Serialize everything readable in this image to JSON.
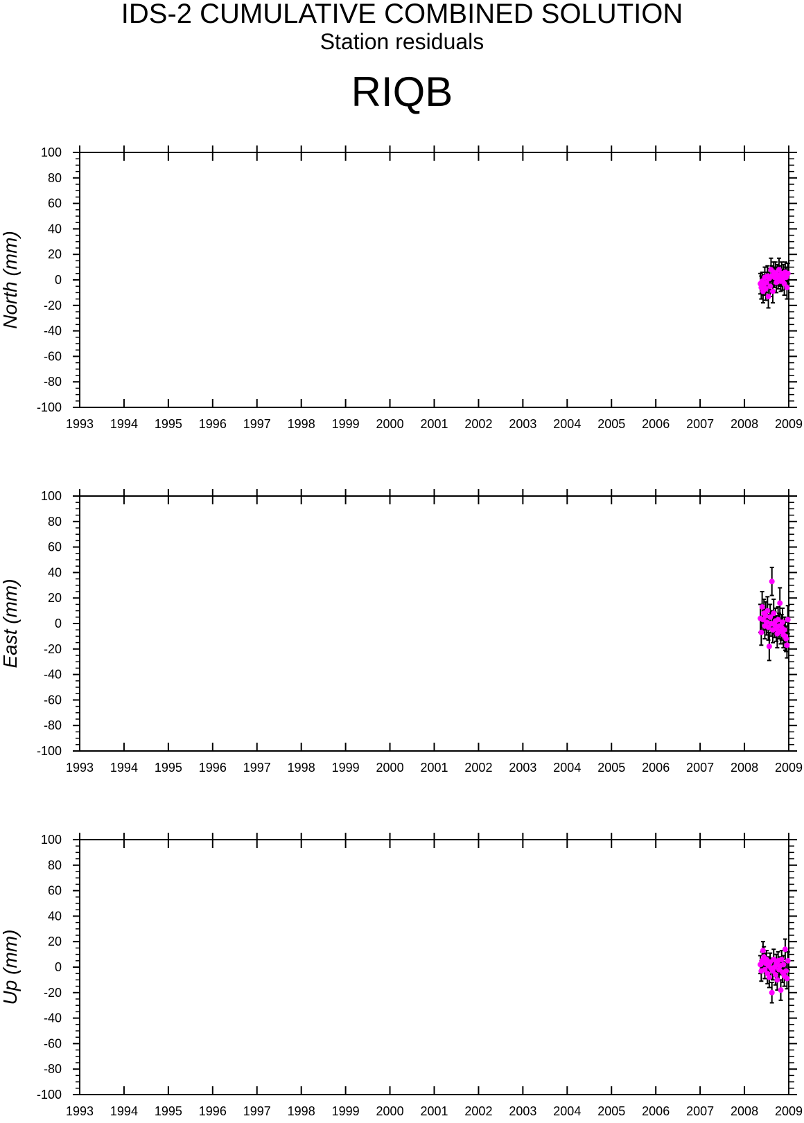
{
  "header": {
    "title": "IDS-2 CUMULATIVE COMBINED SOLUTION",
    "subtitle": "Station residuals",
    "station": "RIQB"
  },
  "colors": {
    "point": "#ff00ff",
    "error_bar": "#000000",
    "axis": "#000000"
  },
  "chart_data": [
    {
      "type": "scatter",
      "ylabel": "North (mm)",
      "xlim": [
        1993,
        2009
      ],
      "ylim": [
        -100,
        100
      ],
      "x_ticks": [
        "1993",
        "1994",
        "1995",
        "1996",
        "1997",
        "1998",
        "1999",
        "2000",
        "2001",
        "2002",
        "2003",
        "2004",
        "2005",
        "2006",
        "2007",
        "2008",
        "2009"
      ],
      "y_ticks": [
        "100",
        "80",
        "60",
        "40",
        "20",
        "0",
        "-20",
        "-40",
        "-60",
        "-80",
        "-100"
      ],
      "grid": false,
      "x": [
        2008.36,
        2008.38,
        2008.4,
        2008.42,
        2008.44,
        2008.46,
        2008.48,
        2008.5,
        2008.52,
        2008.54,
        2008.56,
        2008.58,
        2008.6,
        2008.62,
        2008.64,
        2008.66,
        2008.68,
        2008.7,
        2008.72,
        2008.74,
        2008.76,
        2008.78,
        2008.8,
        2008.82,
        2008.84,
        2008.86,
        2008.88,
        2008.9,
        2008.92,
        2008.94,
        2008.96,
        2008.98
      ],
      "y": [
        -3,
        -6,
        -1,
        -9,
        -4,
        2,
        -7,
        -2,
        3,
        -13,
        1,
        -5,
        8,
        3,
        -9,
        6,
        2,
        5,
        -2,
        4,
        1,
        8,
        3,
        -1,
        5,
        0,
        4,
        -3,
        6,
        2,
        -6,
        5
      ],
      "err": [
        8,
        9,
        7,
        9,
        8,
        8,
        9,
        8,
        8,
        9,
        8,
        8,
        9,
        8,
        9,
        8,
        8,
        9,
        8,
        8,
        8,
        9,
        8,
        8,
        9,
        8,
        8,
        9,
        8,
        8,
        9,
        8
      ]
    },
    {
      "type": "scatter",
      "ylabel": "East (mm)",
      "xlim": [
        1993,
        2009
      ],
      "ylim": [
        -100,
        100
      ],
      "x_ticks": [
        "1993",
        "1994",
        "1995",
        "1996",
        "1997",
        "1998",
        "1999",
        "2000",
        "2001",
        "2002",
        "2003",
        "2004",
        "2005",
        "2006",
        "2007",
        "2008",
        "2009"
      ],
      "y_ticks": [
        "100",
        "80",
        "60",
        "40",
        "20",
        "0",
        "-20",
        "-40",
        "-60",
        "-80",
        "-100"
      ],
      "grid": false,
      "x": [
        2008.36,
        2008.38,
        2008.4,
        2008.42,
        2008.44,
        2008.46,
        2008.48,
        2008.5,
        2008.52,
        2008.54,
        2008.56,
        2008.58,
        2008.6,
        2008.62,
        2008.64,
        2008.66,
        2008.68,
        2008.7,
        2008.72,
        2008.74,
        2008.76,
        2008.78,
        2008.8,
        2008.82,
        2008.84,
        2008.86,
        2008.88,
        2008.9,
        2008.92,
        2008.94,
        2008.96,
        2008.98
      ],
      "y": [
        4,
        -7,
        13,
        3,
        8,
        -2,
        6,
        1,
        10,
        -3,
        -18,
        5,
        0,
        33,
        -5,
        8,
        -1,
        2,
        -4,
        -8,
        3,
        -2,
        16,
        -6,
        -3,
        1,
        -9,
        -5,
        -10,
        -12,
        -17,
        3
      ],
      "err": [
        11,
        10,
        12,
        10,
        11,
        10,
        11,
        10,
        11,
        10,
        11,
        10,
        10,
        11,
        10,
        11,
        10,
        10,
        10,
        11,
        10,
        10,
        12,
        10,
        10,
        11,
        10,
        10,
        11,
        10,
        10,
        11
      ]
    },
    {
      "type": "scatter",
      "ylabel": "Up (mm)",
      "xlim": [
        1993,
        2009
      ],
      "ylim": [
        -100,
        100
      ],
      "x_ticks": [
        "1993",
        "1994",
        "1995",
        "1996",
        "1997",
        "1998",
        "1999",
        "2000",
        "2001",
        "2002",
        "2003",
        "2004",
        "2005",
        "2006",
        "2007",
        "2008",
        "2009"
      ],
      "y_ticks": [
        "100",
        "80",
        "60",
        "40",
        "20",
        "0",
        "-20",
        "-40",
        "-60",
        "-80",
        "-100"
      ],
      "grid": false,
      "x": [
        2008.36,
        2008.38,
        2008.4,
        2008.42,
        2008.44,
        2008.46,
        2008.48,
        2008.5,
        2008.52,
        2008.54,
        2008.56,
        2008.58,
        2008.6,
        2008.62,
        2008.64,
        2008.66,
        2008.68,
        2008.7,
        2008.72,
        2008.74,
        2008.76,
        2008.78,
        2008.8,
        2008.82,
        2008.84,
        2008.86,
        2008.88,
        2008.9,
        2008.92,
        2008.94,
        2008.96,
        2008.98
      ],
      "y": [
        2,
        -3,
        5,
        13,
        8,
        -2,
        3,
        6,
        -5,
        1,
        -8,
        4,
        -1,
        -20,
        -3,
        6,
        0,
        -6,
        3,
        -10,
        5,
        -2,
        1,
        -18,
        6,
        -4,
        2,
        -7,
        14,
        -3,
        -9,
        5
      ],
      "err": [
        7,
        8,
        7,
        7,
        8,
        7,
        8,
        7,
        8,
        7,
        8,
        7,
        8,
        8,
        7,
        8,
        7,
        8,
        7,
        8,
        7,
        8,
        7,
        8,
        7,
        8,
        7,
        8,
        8,
        7,
        8,
        7
      ]
    }
  ]
}
